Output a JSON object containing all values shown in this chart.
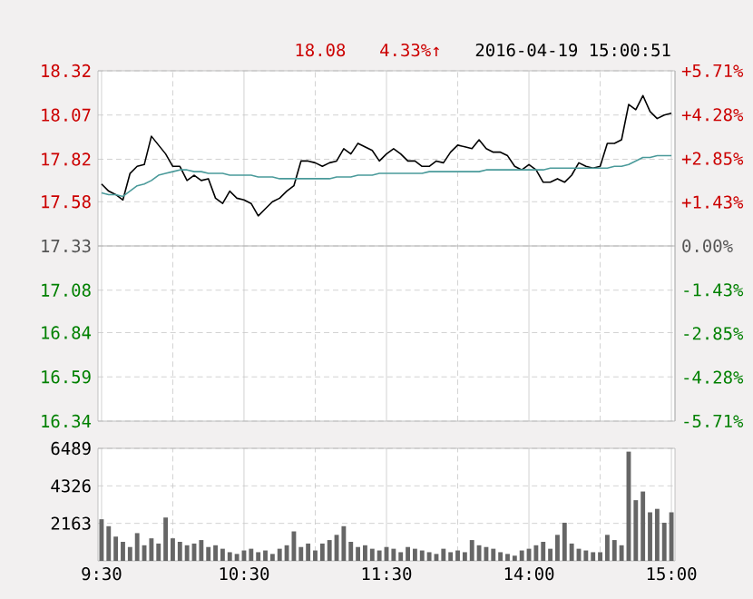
{
  "chart_data": [
    {
      "type": "line",
      "annotations": [
        "18.08",
        "4.33%↑",
        "2016-04-19 15:00:51"
      ],
      "categories": [
        null,
        null,
        null,
        null,
        null,
        null,
        null,
        null,
        null,
        null,
        null,
        null,
        null,
        null,
        null,
        null,
        null,
        null,
        null,
        null,
        null,
        null,
        null,
        null,
        null,
        null,
        null,
        null,
        null,
        null,
        null,
        null,
        null,
        null,
        null,
        null,
        null,
        null,
        null,
        null,
        null,
        null,
        null,
        null,
        null,
        null,
        null,
        null,
        null,
        null,
        null,
        null,
        null,
        null,
        null,
        null,
        null,
        null,
        null,
        null,
        null,
        null,
        null,
        null,
        null,
        null,
        null,
        null,
        null,
        null,
        null,
        null,
        null,
        null,
        null,
        null,
        null,
        null,
        null,
        null,
        null
      ],
      "series": [
        {
          "color": "#000000",
          "values": [
            17.68,
            17.64,
            17.62,
            17.59,
            17.74,
            17.78,
            17.79,
            17.95,
            17.9,
            17.85,
            17.78,
            17.78,
            17.7,
            17.73,
            17.7,
            17.71,
            17.6,
            17.57,
            17.64,
            17.6,
            17.59,
            17.57,
            17.5,
            17.54,
            17.58,
            17.6,
            17.64,
            17.67,
            17.81,
            17.81,
            17.8,
            17.78,
            17.8,
            17.81,
            17.88,
            17.85,
            17.91,
            17.89,
            17.87,
            17.81,
            17.85,
            17.88,
            17.85,
            17.81,
            17.81,
            17.78,
            17.78,
            17.81,
            17.8,
            17.86,
            17.9,
            17.89,
            17.88,
            17.93,
            17.88,
            17.86,
            17.86,
            17.84,
            17.78,
            17.76,
            17.79,
            17.76,
            17.69,
            17.69,
            17.71,
            17.69,
            17.73,
            17.8,
            17.78,
            17.77,
            17.78,
            17.91,
            17.91,
            17.93,
            18.13,
            18.1,
            18.18,
            18.09,
            18.05,
            18.07,
            18.08
          ]
        },
        {
          "color": "#4a9a9a",
          "values": [
            17.63,
            17.62,
            17.62,
            17.61,
            17.64,
            17.67,
            17.68,
            17.7,
            17.73,
            17.74,
            17.75,
            17.76,
            17.76,
            17.75,
            17.75,
            17.74,
            17.74,
            17.74,
            17.73,
            17.73,
            17.73,
            17.73,
            17.72,
            17.72,
            17.72,
            17.71,
            17.71,
            17.71,
            17.71,
            17.71,
            17.71,
            17.71,
            17.71,
            17.72,
            17.72,
            17.72,
            17.73,
            17.73,
            17.73,
            17.74,
            17.74,
            17.74,
            17.74,
            17.74,
            17.74,
            17.74,
            17.75,
            17.75,
            17.75,
            17.75,
            17.75,
            17.75,
            17.75,
            17.75,
            17.76,
            17.76,
            17.76,
            17.76,
            17.76,
            17.76,
            17.76,
            17.76,
            17.76,
            17.77,
            17.77,
            17.77,
            17.77,
            17.77,
            17.77,
            17.77,
            17.77,
            17.77,
            17.78,
            17.78,
            17.79,
            17.81,
            17.83,
            17.83,
            17.84,
            17.84,
            17.84
          ]
        }
      ],
      "ylim": [
        16.34,
        18.32
      ],
      "yticks": [
        16.34,
        16.59,
        16.84,
        17.08,
        17.33,
        17.58,
        17.82,
        18.07,
        18.32
      ],
      "y2lim": [
        -5.71,
        5.71
      ],
      "y2ticks": [
        {
          "value": -5.71,
          "label": "-5.71%"
        },
        {
          "value": -4.28,
          "label": "-4.28%"
        },
        {
          "value": -2.85,
          "label": "-2.85%"
        },
        {
          "value": -1.43,
          "label": "-1.43%"
        },
        {
          "value": 0,
          "label": "0.00%"
        },
        {
          "value": 1.43,
          "label": "+1.43%"
        },
        {
          "value": 2.85,
          "label": "+2.85%"
        },
        {
          "value": 4.28,
          "label": "+4.28%"
        },
        {
          "value": 5.71,
          "label": "+5.71%"
        }
      ],
      "ref_lines": [
        {
          "axis": "y",
          "value": 17.33
        }
      ],
      "grid": true,
      "tick_labels": "y"
    },
    {
      "type": "bar",
      "color": "#666666",
      "categories": [
        "9:30",
        null,
        null,
        null,
        null,
        null,
        null,
        null,
        null,
        null,
        null,
        null,
        null,
        null,
        null,
        null,
        null,
        null,
        null,
        null,
        "10:30",
        null,
        null,
        null,
        null,
        null,
        null,
        null,
        null,
        null,
        null,
        null,
        null,
        null,
        null,
        null,
        null,
        null,
        null,
        null,
        "11:30",
        null,
        null,
        null,
        null,
        null,
        null,
        null,
        null,
        null,
        null,
        null,
        null,
        null,
        null,
        null,
        null,
        null,
        null,
        null,
        "14:00",
        null,
        null,
        null,
        null,
        null,
        null,
        null,
        null,
        null,
        null,
        null,
        null,
        null,
        null,
        null,
        null,
        null,
        null,
        null,
        "15:00"
      ],
      "values": [
        2400,
        2000,
        1400,
        1100,
        800,
        1600,
        900,
        1300,
        1000,
        2500,
        1300,
        1100,
        900,
        1000,
        1200,
        800,
        900,
        700,
        500,
        400,
        600,
        700,
        500,
        600,
        400,
        700,
        900,
        1700,
        800,
        1000,
        600,
        1000,
        1200,
        1500,
        2000,
        1100,
        800,
        900,
        700,
        600,
        800,
        700,
        500,
        800,
        700,
        600,
        500,
        400,
        700,
        500,
        600,
        500,
        1200,
        900,
        800,
        700,
        500,
        400,
        300,
        600,
        700,
        900,
        1100,
        700,
        1500,
        2200,
        1000,
        700,
        600,
        500,
        500,
        1500,
        1200,
        900,
        6300,
        3500,
        4000,
        2800,
        3000,
        2200,
        2800
      ],
      "ylim": [
        0,
        6489
      ],
      "yticks": [
        2163,
        4326,
        6489
      ],
      "grid": true
    }
  ]
}
